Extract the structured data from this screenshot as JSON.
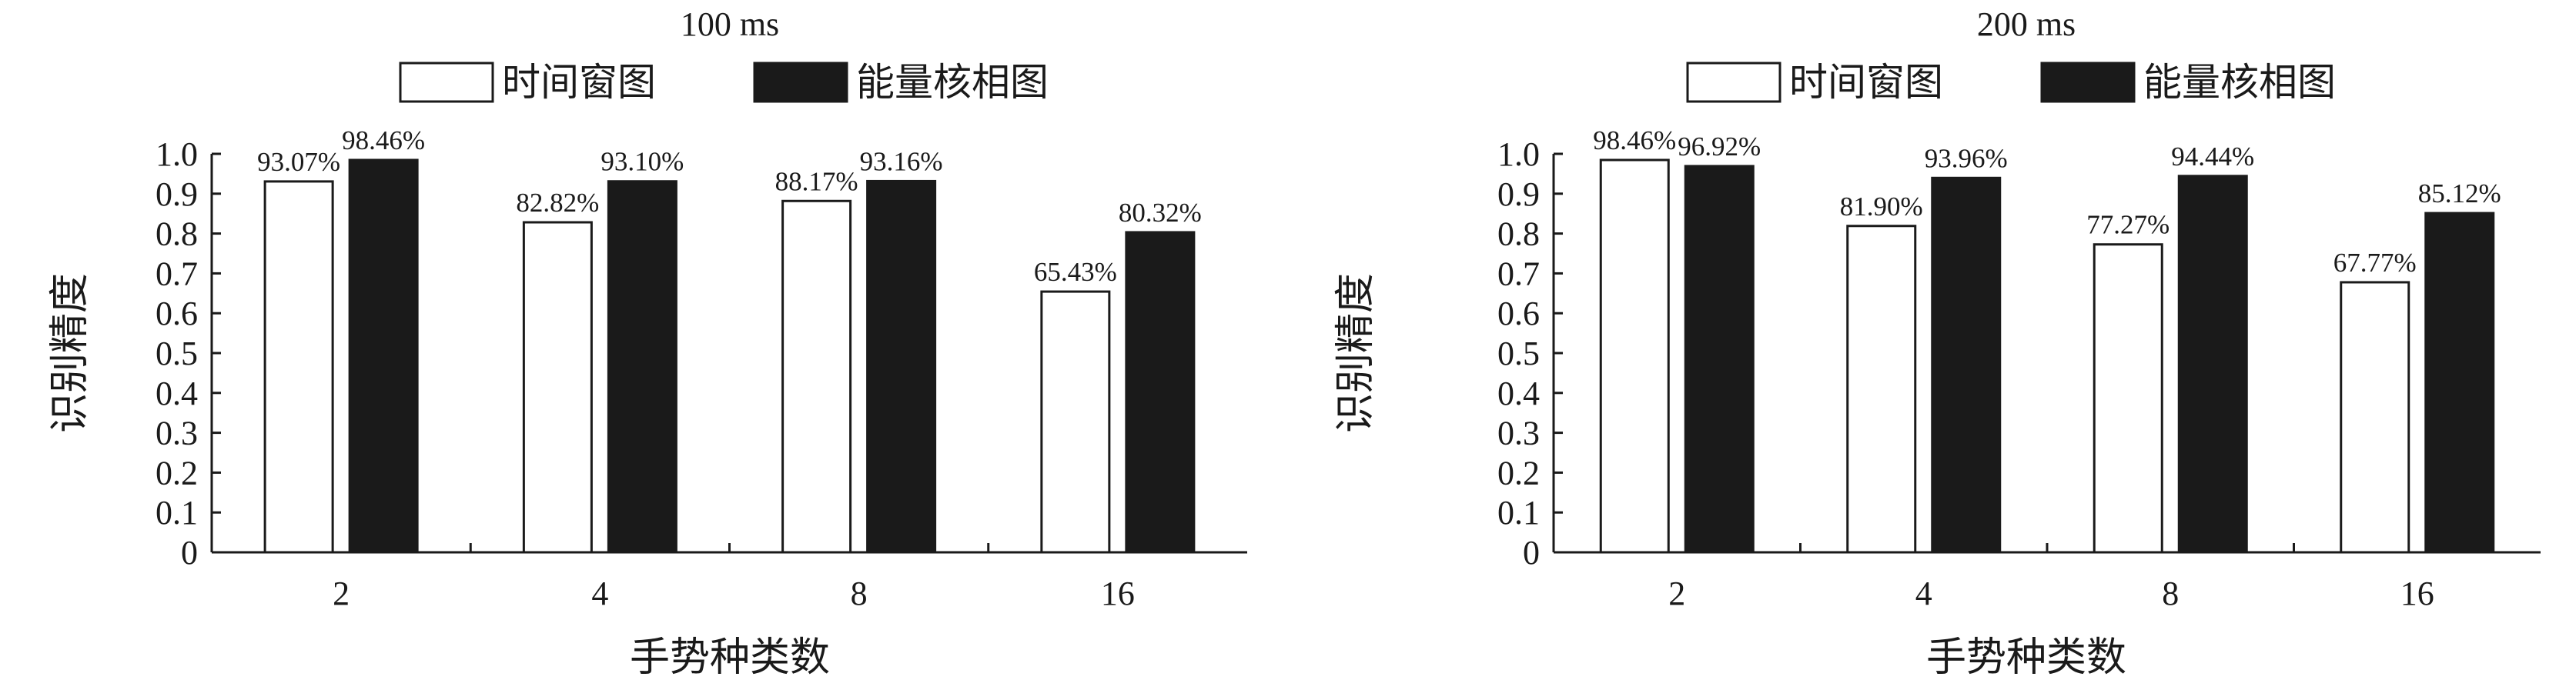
{
  "chart_data": [
    {
      "type": "bar",
      "title": "100 ms",
      "categories": [
        "2",
        "4",
        "8",
        "16"
      ],
      "series": [
        {
          "name": "时间窗图",
          "values": [
            0.9307,
            0.8282,
            0.8817,
            0.6543
          ],
          "labels": [
            "93.07%",
            "82.82%",
            "88.17%",
            "65.43%"
          ],
          "color": "#ffffff"
        },
        {
          "name": "能量核相图",
          "values": [
            0.9846,
            0.931,
            0.9316,
            0.8032
          ],
          "labels": [
            "98.46%",
            "93.10%",
            "93.16%",
            "80.32%"
          ],
          "color": "#1a1a1a"
        }
      ],
      "xlabel": "手势种类数",
      "ylabel": "识别精度",
      "ylim": [
        0,
        1.0
      ],
      "yticks": [
        "0",
        "0.1",
        "0.2",
        "0.3",
        "0.4",
        "0.5",
        "0.6",
        "0.7",
        "0.8",
        "0.9",
        "1.0"
      ],
      "legend": "top",
      "grid": false
    },
    {
      "type": "bar",
      "title": "200 ms",
      "categories": [
        "2",
        "4",
        "8",
        "16"
      ],
      "series": [
        {
          "name": "时间窗图",
          "values": [
            0.9846,
            0.819,
            0.7727,
            0.6777
          ],
          "labels": [
            "98.46%",
            "81.90%",
            "77.27%",
            "67.77%"
          ],
          "color": "#ffffff"
        },
        {
          "name": "能量核相图",
          "values": [
            0.9692,
            0.9396,
            0.9444,
            0.8512
          ],
          "labels": [
            "96.92%",
            "93.96%",
            "94.44%",
            "85.12%"
          ],
          "color": "#1a1a1a"
        }
      ],
      "xlabel": "手势种类数",
      "ylabel": "识别精度",
      "ylim": [
        0,
        1.0
      ],
      "yticks": [
        "0",
        "0.1",
        "0.2",
        "0.3",
        "0.4",
        "0.5",
        "0.6",
        "0.7",
        "0.8",
        "0.9",
        "1.0"
      ],
      "legend": "top",
      "grid": false
    }
  ]
}
